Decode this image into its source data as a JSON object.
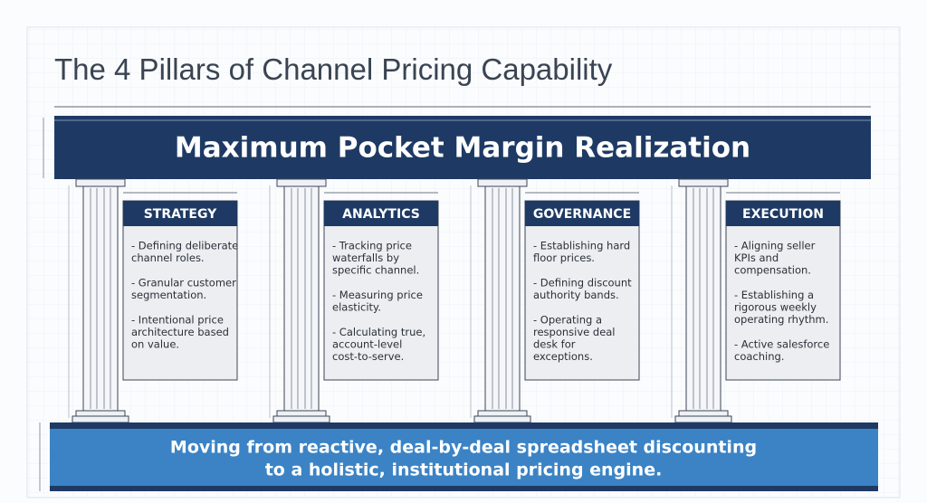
{
  "title": "The 4 Pillars of Channel Pricing Capability",
  "banner": "Maximum Pocket Margin Realization",
  "pillars": [
    {
      "name": "STRATEGY",
      "bullets": [
        [
          "- Defining deliberate",
          "channel roles."
        ],
        [
          "- Granular customer",
          "segmentation."
        ],
        [
          "- Intentional price",
          "architecture based",
          "on value."
        ]
      ]
    },
    {
      "name": "ANALYTICS",
      "bullets": [
        [
          "- Tracking price",
          "waterfalls by",
          "specific channel."
        ],
        [
          "- Measuring price",
          "elasticity."
        ],
        [
          "- Calculating true,",
          "account-level",
          "cost-to-serve."
        ]
      ]
    },
    {
      "name": "GOVERNANCE",
      "bullets": [
        [
          "- Establishing hard",
          "floor prices."
        ],
        [
          "- Defining discount",
          "authority bands."
        ],
        [
          "- Operating a",
          "responsive deal",
          "desk for",
          "exceptions."
        ]
      ]
    },
    {
      "name": "EXECUTION",
      "bullets": [
        [
          "- Aligning seller",
          "KPIs and",
          "compensation."
        ],
        [
          "- Establishing a",
          "rigorous weekly",
          "operating rhythm."
        ],
        [
          "- Active salesforce",
          "coaching."
        ]
      ]
    }
  ],
  "foundation": [
    "Moving from reactive, deal-by-deal spreadsheet discounting",
    "to a holistic, institutional pricing engine."
  ]
}
